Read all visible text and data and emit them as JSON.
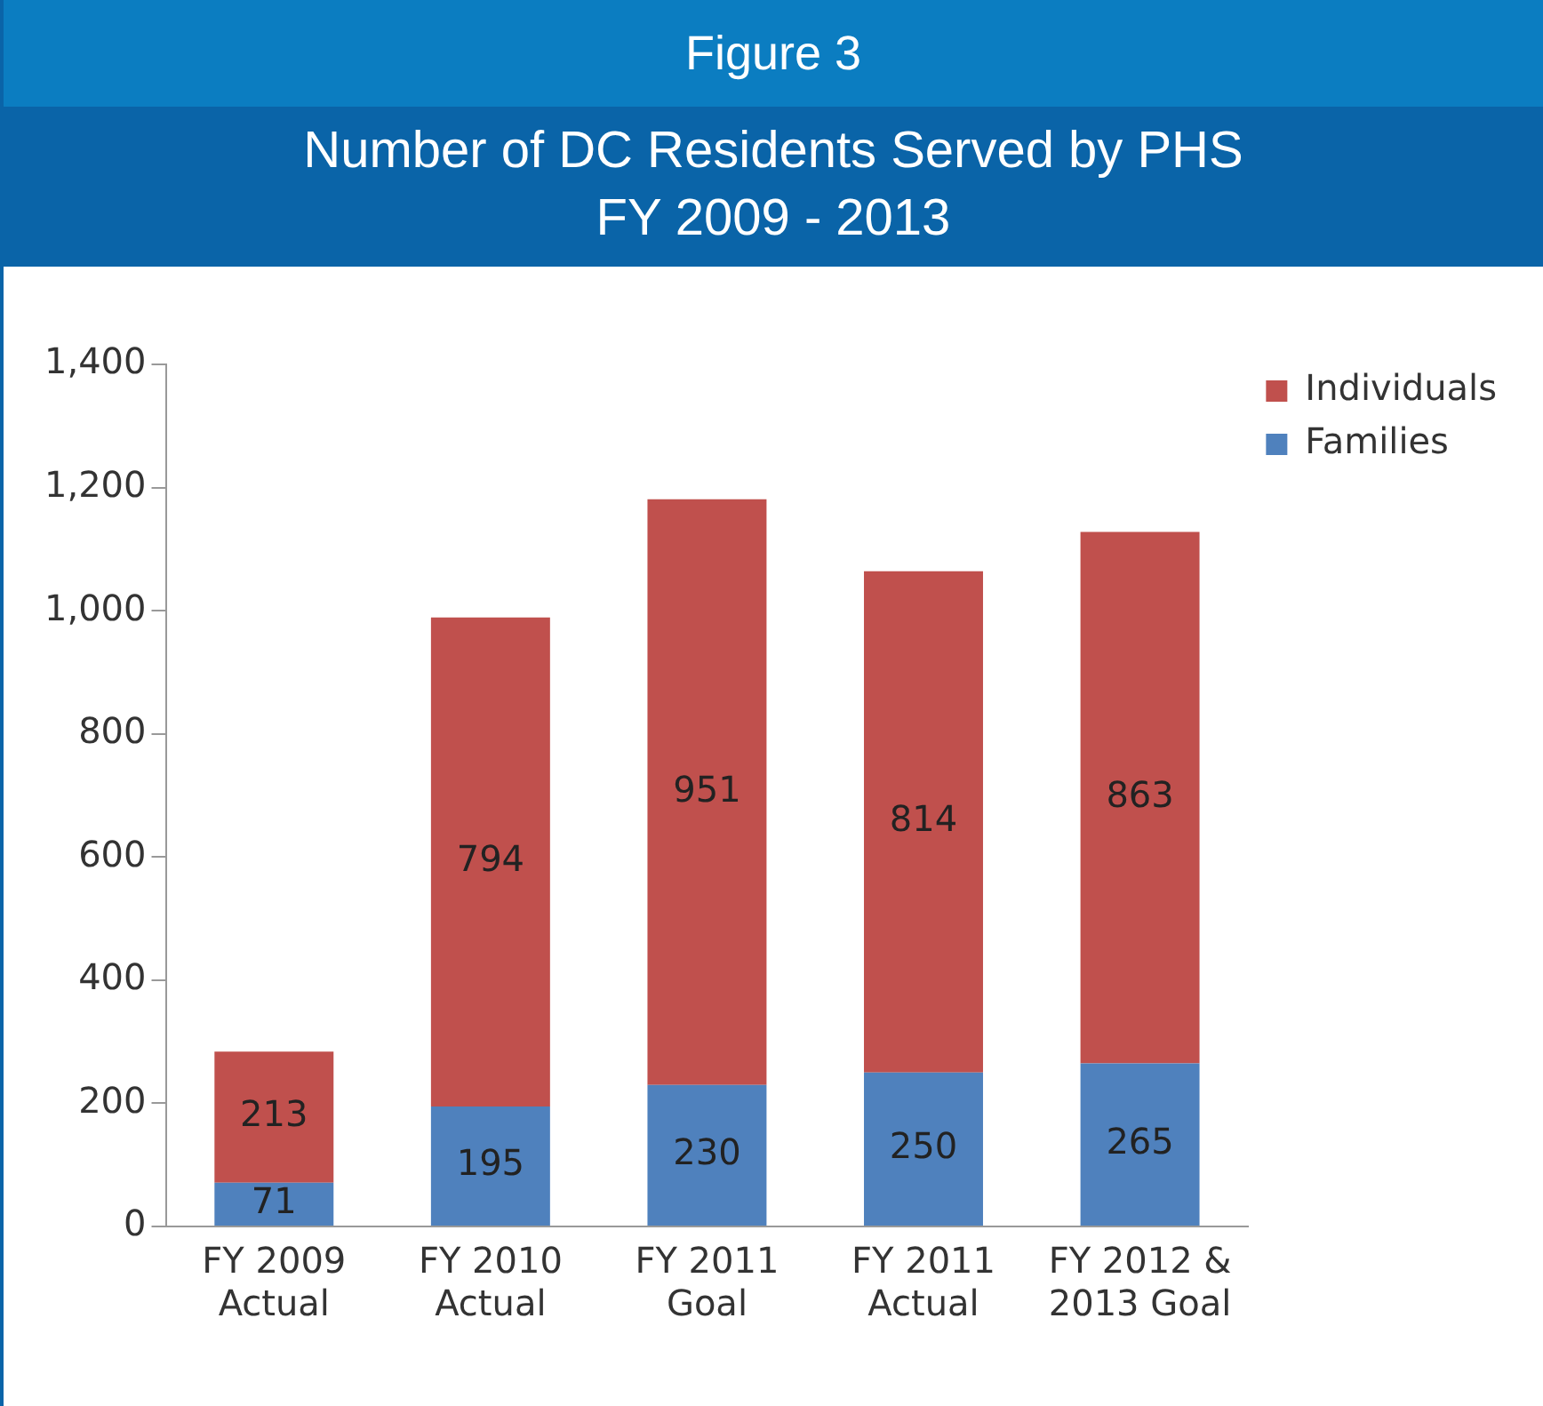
{
  "chart_data": {
    "type": "bar",
    "title": "Figure 3",
    "subtitle": "Number of DC Residents Served by PHS\nFY 2009 - 2013",
    "categories": [
      "FY 2009\nActual",
      "FY 2010\nActual",
      "FY 2011\nGoal",
      "FY 2011\nActual",
      "FY 2012 &\n2013 Goal"
    ],
    "series": [
      {
        "name": "Families",
        "color": "#4f81bd",
        "values": [
          71,
          195,
          230,
          250,
          265
        ]
      },
      {
        "name": "Individuals",
        "color": "#c0504d",
        "values": [
          213,
          794,
          951,
          814,
          863
        ]
      }
    ],
    "stacked": true,
    "data_labels": true,
    "legend": "top right",
    "grid": false,
    "ylim": [
      0,
      1400
    ],
    "yticks": [
      0,
      {
        "value": 200,
        "label": "200"
      },
      {
        "value": 400,
        "label": "400"
      },
      {
        "value": 600,
        "label": "600"
      },
      {
        "value": 800,
        "label": "800"
      },
      {
        "value": 1000,
        "label": "1,000"
      },
      {
        "value": 1200,
        "label": "1,200"
      },
      {
        "value": 1400,
        "label": "1,400"
      }
    ]
  }
}
